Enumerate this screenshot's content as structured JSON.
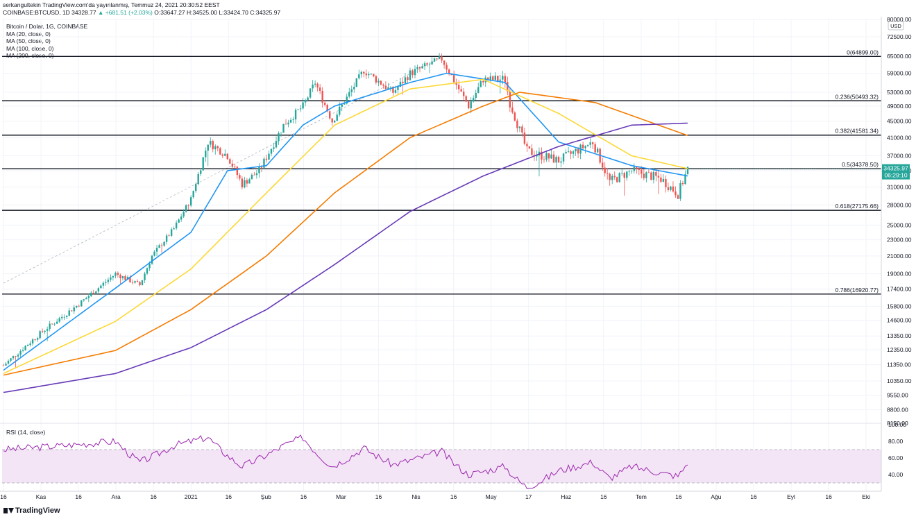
{
  "header": {
    "author_line": "serkangultekin TradingView.com'da yayınlanmış, Temmuz 24, 2021 20:30:52 EEST",
    "symbol_line": "COINBASE:BTCUSD, 1D 34328.77",
    "change": "▲ +681.51 (+2.03%)",
    "ohlc_rest": "O:33647.27 H:34525.00 L:33424.70 C:34325.97"
  },
  "legend": {
    "title": "Bitcoin / Dolar, 1G, COINBASE",
    "ma20": "MA (20, close, 0)",
    "ma50": "MA (50, close, 0)",
    "ma100": "MA (100, close, 0)",
    "ma200": "MA (200, close, 0)"
  },
  "rsi_label": "RSI (14, close)",
  "currency_badge": "USD",
  "price_badge": {
    "price": "34325.97",
    "countdown": "06:29:10",
    "color": "#26a69a"
  },
  "footer": {
    "brand": "TradingView"
  },
  "colors": {
    "ma20": "#2196f3",
    "ma50": "#fdd835",
    "ma100": "#f57c00",
    "ma200": "#673ab7",
    "rsi": "#9c27b0",
    "rsi_band": "#f3e5f5",
    "up": "#26a69a",
    "down": "#ef5350"
  },
  "chart_data": {
    "type": "candlestick",
    "symbol": "COINBASE:BTCUSD",
    "interval": "1D",
    "y_scale": "log",
    "ylim": [
      8150,
      80000
    ],
    "y_ticks": [
      "80000.00",
      "72500.00",
      "65000.00",
      "59000.00",
      "53000.00",
      "49000.00",
      "45000.00",
      "41000.00",
      "37000.00",
      "34000.00",
      "31000.00",
      "28000.00",
      "25000.00",
      "23000.00",
      "21000.00",
      "19000.00",
      "17400.00",
      "15800.00",
      "14600.00",
      "13350.00",
      "12350.00",
      "11350.00",
      "10350.00",
      "9550.00",
      "8800.00",
      "8150.00"
    ],
    "x_ticks": [
      "16",
      "Kas",
      "16",
      "Ara",
      "16",
      "2021",
      "16",
      "Şub",
      "16",
      "Mar",
      "16",
      "Nis",
      "16",
      "May",
      "17",
      "Haz",
      "16",
      "Tem",
      "16",
      "Ağu",
      "16",
      "Eyl",
      "16",
      "Eki"
    ],
    "fib_levels": [
      {
        "label": "0(64899.00)",
        "value": 64899.0
      },
      {
        "label": "0.236(50493.32)",
        "value": 50493.32
      },
      {
        "label": "0.382(41581.34)",
        "value": 41581.34
      },
      {
        "label": "0.5(34378.50)",
        "value": 34378.5
      },
      {
        "label": "0.618(27175.66)",
        "value": 27175.66
      },
      {
        "label": "0.786(16920.77)",
        "value": 16920.77
      }
    ],
    "price_path": [
      [
        "Oct 16",
        11300
      ],
      [
        "Nov 1",
        13700
      ],
      [
        "Nov 16",
        16000
      ],
      [
        "Dec 1",
        19000
      ],
      [
        "Dec 11",
        17800
      ],
      [
        "Dec 16",
        21000
      ],
      [
        "Dec 25",
        24500
      ],
      [
        "Jan 1",
        29000
      ],
      [
        "Jan 8",
        40000
      ],
      [
        "Jan 16",
        37000
      ],
      [
        "Jan 22",
        31500
      ],
      [
        "Jan 29",
        34000
      ],
      [
        "Feb 8",
        44000
      ],
      [
        "Feb 16",
        49000
      ],
      [
        "Feb 21",
        56000
      ],
      [
        "Feb 28",
        45000
      ],
      [
        "Mar 13",
        60000
      ],
      [
        "Mar 25",
        53000
      ],
      [
        "Apr 1",
        59000
      ],
      [
        "Apr 14",
        64000
      ],
      [
        "Apr 25",
        49000
      ],
      [
        "May 1",
        57000
      ],
      [
        "May 10",
        57000
      ],
      [
        "May 12",
        50000
      ],
      [
        "May 19",
        38000
      ],
      [
        "Jun 1",
        36000
      ],
      [
        "Jun 15",
        40000
      ],
      [
        "Jun 22",
        32000
      ],
      [
        "Jul 1",
        34000
      ],
      [
        "Jul 13",
        32500
      ],
      [
        "Jul 20",
        29800
      ],
      [
        "Jul 24",
        34326
      ]
    ],
    "ma_series": [
      {
        "name": "MA (20, close, 0)",
        "values": [
          [
            "Oct 16",
            11000
          ],
          [
            "Dec 1",
            17500
          ],
          [
            "Jan 1",
            24000
          ],
          [
            "Jan 16",
            34000
          ],
          [
            "Feb 1",
            35000
          ],
          [
            "Feb 16",
            44000
          ],
          [
            "Mar 1",
            49000
          ],
          [
            "Apr 1",
            56000
          ],
          [
            "Apr 16",
            59000
          ],
          [
            "May 10",
            56000
          ],
          [
            "Jun 1",
            40000
          ],
          [
            "Jul 1",
            35000
          ],
          [
            "Jul 24",
            33000
          ]
        ]
      },
      {
        "name": "MA (50, close, 0)",
        "values": [
          [
            "Oct 16",
            10800
          ],
          [
            "Dec 1",
            14500
          ],
          [
            "Jan 1",
            19500
          ],
          [
            "Feb 1",
            30000
          ],
          [
            "Mar 1",
            44000
          ],
          [
            "Apr 1",
            54000
          ],
          [
            "May 1",
            57000
          ],
          [
            "Jun 1",
            47000
          ],
          [
            "Jul 1",
            37000
          ],
          [
            "Jul 24",
            34400
          ]
        ]
      },
      {
        "name": "MA (100, close, 0)",
        "values": [
          [
            "Oct 16",
            10700
          ],
          [
            "Dec 1",
            12300
          ],
          [
            "Jan 1",
            15500
          ],
          [
            "Feb 1",
            21000
          ],
          [
            "Mar 1",
            30000
          ],
          [
            "Apr 1",
            41000
          ],
          [
            "May 1",
            49000
          ],
          [
            "May 16",
            53000
          ],
          [
            "Jun 16",
            50000
          ],
          [
            "Jul 24",
            41500
          ]
        ]
      },
      {
        "name": "MA (200, close, 0)",
        "values": [
          [
            "Oct 16",
            9700
          ],
          [
            "Dec 1",
            10800
          ],
          [
            "Jan 1",
            12500
          ],
          [
            "Feb 1",
            15500
          ],
          [
            "Mar 1",
            20000
          ],
          [
            "Apr 1",
            27000
          ],
          [
            "May 1",
            33000
          ],
          [
            "Jun 1",
            39000
          ],
          [
            "Jul 1",
            44000
          ],
          [
            "Jul 24",
            44500
          ]
        ]
      }
    ],
    "rsi": {
      "name": "RSI (14, close)",
      "ylim": [
        20,
        100
      ],
      "band": [
        30,
        70
      ],
      "ticks": [
        "100.00",
        "80.00",
        "60.00",
        "40.00"
      ],
      "path": [
        [
          "Oct 16",
          70
        ],
        [
          "Nov 10",
          75
        ],
        [
          "Dec 1",
          80
        ],
        [
          "Dec 11",
          55
        ],
        [
          "Dec 25",
          75
        ],
        [
          "Jan 8",
          85
        ],
        [
          "Jan 22",
          50
        ],
        [
          "Feb 8",
          75
        ],
        [
          "Feb 16",
          85
        ],
        [
          "Feb 28",
          50
        ],
        [
          "Mar 13",
          72
        ],
        [
          "Mar 25",
          52
        ],
        [
          "Apr 14",
          68
        ],
        [
          "Apr 25",
          40
        ],
        [
          "May 10",
          50
        ],
        [
          "May 19",
          25
        ],
        [
          "Jun 1",
          45
        ],
        [
          "Jun 15",
          55
        ],
        [
          "Jun 22",
          36
        ],
        [
          "Jul 1",
          50
        ],
        [
          "Jul 20",
          38
        ],
        [
          "Jul 24",
          55
        ]
      ]
    }
  }
}
